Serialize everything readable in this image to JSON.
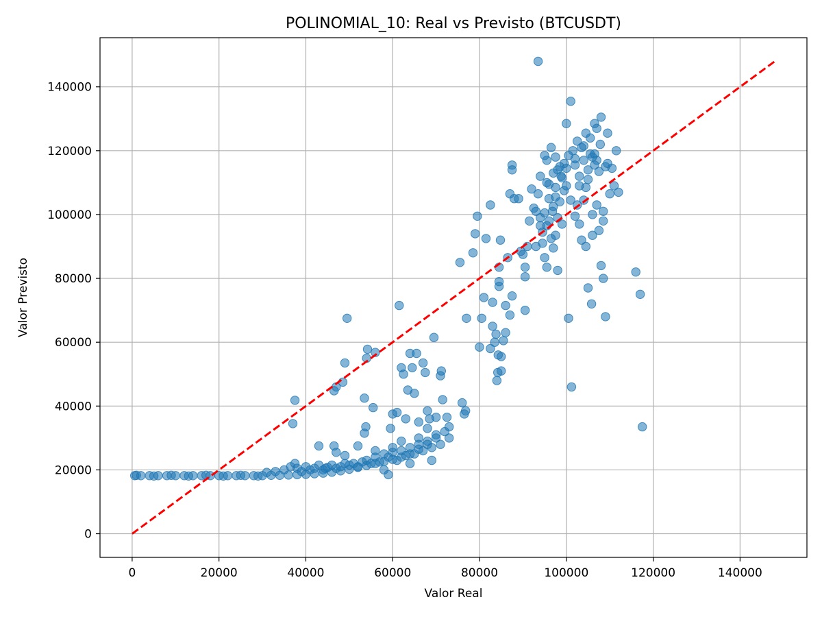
{
  "chart_data": {
    "type": "scatter",
    "title": "POLINOMIAL_10: Real vs Previsto (BTCUSDT)",
    "xlabel": "Valor Real",
    "ylabel": "Valor Previsto",
    "xlim": [
      -7400,
      155400
    ],
    "ylim": [
      -7400,
      155400
    ],
    "xticks": [
      0,
      20000,
      40000,
      60000,
      80000,
      100000,
      120000,
      140000
    ],
    "yticks": [
      0,
      20000,
      40000,
      60000,
      80000,
      100000,
      120000,
      140000
    ],
    "xtick_labels": [
      "0",
      "20000",
      "40000",
      "60000",
      "80000",
      "100000",
      "120000",
      "140000"
    ],
    "ytick_labels": [
      "0",
      "20000",
      "40000",
      "60000",
      "80000",
      "100000",
      "120000",
      "140000"
    ],
    "grid": true,
    "point_color": "#1f77b4",
    "point_alpha": 0.55,
    "reference_line": {
      "x": [
        0,
        148400
      ],
      "y": [
        0,
        148400
      ],
      "color": "#ff0000",
      "style": "dashed"
    },
    "points": [
      [
        600,
        18200
      ],
      [
        2000,
        18200
      ],
      [
        4000,
        18200
      ],
      [
        6000,
        18200
      ],
      [
        8000,
        18200
      ],
      [
        10000,
        18200
      ],
      [
        12000,
        18200
      ],
      [
        14000,
        18200
      ],
      [
        16000,
        18200
      ],
      [
        18000,
        18200
      ],
      [
        20000,
        18200
      ],
      [
        22000,
        18200
      ],
      [
        24000,
        18200
      ],
      [
        26000,
        18200
      ],
      [
        28000,
        18200
      ],
      [
        30000,
        18200
      ],
      [
        32000,
        18300
      ],
      [
        34000,
        18300
      ],
      [
        36000,
        18400
      ],
      [
        38000,
        18500
      ],
      [
        40000,
        18600
      ],
      [
        42000,
        18800
      ],
      [
        44000,
        19000
      ],
      [
        46000,
        19300
      ],
      [
        48000,
        19700
      ],
      [
        50000,
        20200
      ],
      [
        52000,
        20800
      ],
      [
        54000,
        21400
      ],
      [
        56000,
        22000
      ],
      [
        58000,
        22600
      ],
      [
        60000,
        23300
      ],
      [
        62000,
        24000
      ],
      [
        64000,
        25000
      ],
      [
        66000,
        26500
      ],
      [
        68000,
        28000
      ],
      [
        70000,
        30000
      ],
      [
        1000,
        18300
      ],
      [
        5000,
        18100
      ],
      [
        9000,
        18300
      ],
      [
        13000,
        18100
      ],
      [
        17000,
        18300
      ],
      [
        21000,
        18100
      ],
      [
        25000,
        18300
      ],
      [
        29000,
        18100
      ],
      [
        31000,
        19200
      ],
      [
        33000,
        19500
      ],
      [
        35000,
        20000
      ],
      [
        36500,
        21000
      ],
      [
        37500,
        22000
      ],
      [
        38000,
        20500
      ],
      [
        39000,
        19500
      ],
      [
        40000,
        21000
      ],
      [
        41000,
        20000
      ],
      [
        42000,
        20500
      ],
      [
        43000,
        21500
      ],
      [
        44000,
        20000
      ],
      [
        45000,
        20800
      ],
      [
        46000,
        21500
      ],
      [
        47000,
        20500
      ],
      [
        48000,
        21000
      ],
      [
        49000,
        22000
      ],
      [
        50000,
        21500
      ],
      [
        51000,
        22000
      ],
      [
        52000,
        21000
      ],
      [
        53000,
        22500
      ],
      [
        54000,
        23000
      ],
      [
        55000,
        22000
      ],
      [
        56000,
        24000
      ],
      [
        57000,
        22500
      ],
      [
        58000,
        25000
      ],
      [
        59000,
        24000
      ],
      [
        60000,
        25500
      ],
      [
        61000,
        23000
      ],
      [
        62000,
        26000
      ],
      [
        63000,
        24500
      ],
      [
        64000,
        27000
      ],
      [
        65000,
        25000
      ],
      [
        66000,
        28000
      ],
      [
        67000,
        26000
      ],
      [
        68000,
        29000
      ],
      [
        69000,
        27000
      ],
      [
        70000,
        31000
      ],
      [
        71000,
        28000
      ],
      [
        72000,
        32000
      ],
      [
        73000,
        30000
      ],
      [
        68000,
        33000
      ],
      [
        66000,
        30000
      ],
      [
        64000,
        22000
      ],
      [
        62000,
        29000
      ],
      [
        60000,
        27000
      ],
      [
        58000,
        20000
      ],
      [
        56000,
        26000
      ],
      [
        37000,
        34500
      ],
      [
        37500,
        41800
      ],
      [
        43000,
        27500
      ],
      [
        44500,
        20500
      ],
      [
        46500,
        27500
      ],
      [
        47000,
        25500
      ],
      [
        49000,
        24500
      ],
      [
        52000,
        27500
      ],
      [
        53500,
        31500
      ],
      [
        53800,
        33500
      ],
      [
        54000,
        55000
      ],
      [
        54200,
        57800
      ],
      [
        55500,
        39500
      ],
      [
        56000,
        56800
      ],
      [
        59000,
        18500
      ],
      [
        59500,
        33000
      ],
      [
        60000,
        37500
      ],
      [
        61000,
        38000
      ],
      [
        61500,
        71500
      ],
      [
        62000,
        52000
      ],
      [
        62500,
        50000
      ],
      [
        63000,
        36000
      ],
      [
        63500,
        45000
      ],
      [
        64000,
        56500
      ],
      [
        64500,
        52000
      ],
      [
        65000,
        44000
      ],
      [
        65500,
        56500
      ],
      [
        66000,
        35000
      ],
      [
        67000,
        53500
      ],
      [
        67500,
        50500
      ],
      [
        68000,
        38500
      ],
      [
        68500,
        36000
      ],
      [
        69000,
        23000
      ],
      [
        69500,
        61500
      ],
      [
        70000,
        36500
      ],
      [
        71000,
        49500
      ],
      [
        71200,
        51000
      ],
      [
        71500,
        42000
      ],
      [
        72500,
        36500
      ],
      [
        73000,
        33500
      ],
      [
        46500,
        44800
      ],
      [
        47000,
        46000
      ],
      [
        48500,
        47500
      ],
      [
        49000,
        53500
      ],
      [
        49500,
        67500
      ],
      [
        53500,
        42500
      ],
      [
        75500,
        85000
      ],
      [
        76000,
        41000
      ],
      [
        76500,
        37500
      ],
      [
        76800,
        38500
      ],
      [
        77000,
        67500
      ],
      [
        78500,
        88000
      ],
      [
        79000,
        94000
      ],
      [
        79500,
        99500
      ],
      [
        80000,
        58500
      ],
      [
        80500,
        67500
      ],
      [
        81000,
        74000
      ],
      [
        81500,
        92500
      ],
      [
        82500,
        103000
      ],
      [
        82500,
        58000
      ],
      [
        83000,
        65000
      ],
      [
        83000,
        72500
      ],
      [
        83500,
        60000
      ],
      [
        83800,
        62500
      ],
      [
        84000,
        48000
      ],
      [
        84200,
        50500
      ],
      [
        84300,
        56000
      ],
      [
        84500,
        79000
      ],
      [
        84500,
        77500
      ],
      [
        84500,
        83500
      ],
      [
        84800,
        92000
      ],
      [
        85000,
        51000
      ],
      [
        85000,
        55500
      ],
      [
        85500,
        60500
      ],
      [
        86000,
        63000
      ],
      [
        86000,
        71500
      ],
      [
        86500,
        86500
      ],
      [
        87000,
        106500
      ],
      [
        87000,
        68500
      ],
      [
        87500,
        74500
      ],
      [
        87500,
        114000
      ],
      [
        87500,
        115500
      ],
      [
        88000,
        105000
      ],
      [
        89000,
        105000
      ],
      [
        89500,
        88500
      ],
      [
        90000,
        87500
      ],
      [
        90500,
        80500
      ],
      [
        90500,
        83500
      ],
      [
        90500,
        70000
      ],
      [
        91000,
        90000
      ],
      [
        91500,
        98000
      ],
      [
        92000,
        108000
      ],
      [
        92500,
        102000
      ],
      [
        93000,
        90000
      ],
      [
        93500,
        106500
      ],
      [
        93500,
        148000
      ],
      [
        94000,
        112000
      ],
      [
        94000,
        96500
      ],
      [
        94500,
        94500
      ],
      [
        94500,
        91000
      ],
      [
        95000,
        100500
      ],
      [
        95000,
        86500
      ],
      [
        95500,
        83500
      ],
      [
        95500,
        110000
      ],
      [
        95500,
        117000
      ],
      [
        96000,
        98000
      ],
      [
        96000,
        105000
      ],
      [
        96500,
        121000
      ],
      [
        96500,
        92500
      ],
      [
        97000,
        89500
      ],
      [
        97000,
        102500
      ],
      [
        97000,
        113000
      ],
      [
        97500,
        108500
      ],
      [
        97500,
        118000
      ],
      [
        98000,
        82500
      ],
      [
        98000,
        99000
      ],
      [
        98500,
        104000
      ],
      [
        98500,
        115000
      ],
      [
        99000,
        97000
      ],
      [
        99500,
        107500
      ],
      [
        99500,
        116000
      ],
      [
        100000,
        128500
      ],
      [
        100000,
        109000
      ],
      [
        100500,
        67500
      ],
      [
        101000,
        135500
      ],
      [
        101200,
        46000
      ],
      [
        101500,
        120000
      ],
      [
        102000,
        99500
      ],
      [
        102000,
        115500
      ],
      [
        102500,
        103000
      ],
      [
        103000,
        97000
      ],
      [
        103000,
        112000
      ],
      [
        103500,
        92000
      ],
      [
        103500,
        121000
      ],
      [
        104000,
        104500
      ],
      [
        104000,
        117000
      ],
      [
        104500,
        125500
      ],
      [
        104500,
        90000
      ],
      [
        105000,
        77000
      ],
      [
        105000,
        111000
      ],
      [
        105500,
        119000
      ],
      [
        105800,
        72000
      ],
      [
        106000,
        100000
      ],
      [
        106000,
        93500
      ],
      [
        106500,
        128500
      ],
      [
        106500,
        119000
      ],
      [
        107000,
        127000
      ],
      [
        107000,
        103000
      ],
      [
        107500,
        95000
      ],
      [
        107500,
        113500
      ],
      [
        108000,
        84000
      ],
      [
        108000,
        130500
      ],
      [
        108500,
        80000
      ],
      [
        108500,
        98000
      ],
      [
        109000,
        68000
      ],
      [
        109000,
        115000
      ],
      [
        109500,
        125500
      ],
      [
        110000,
        106500
      ],
      [
        110500,
        114500
      ],
      [
        111000,
        109000
      ],
      [
        111500,
        120000
      ],
      [
        112000,
        107000
      ],
      [
        116000,
        82000
      ],
      [
        117000,
        75000
      ],
      [
        117500,
        33500
      ],
      [
        95000,
        118500
      ],
      [
        96000,
        109500
      ],
      [
        97500,
        105500
      ],
      [
        98800,
        112000
      ],
      [
        100500,
        118500
      ],
      [
        102500,
        123000
      ],
      [
        104500,
        108500
      ],
      [
        106000,
        118000
      ],
      [
        107800,
        122000
      ],
      [
        109500,
        116000
      ],
      [
        93000,
        101000
      ],
      [
        94000,
        99000
      ],
      [
        95500,
        96500
      ],
      [
        96800,
        101000
      ],
      [
        97500,
        93500
      ],
      [
        99000,
        111500
      ],
      [
        101000,
        104500
      ],
      [
        103000,
        109000
      ],
      [
        105000,
        114000
      ],
      [
        106500,
        115500
      ],
      [
        108500,
        101000
      ],
      [
        98000,
        114000
      ],
      [
        100000,
        114500
      ],
      [
        102000,
        117500
      ],
      [
        104000,
        121500
      ],
      [
        105500,
        124000
      ],
      [
        107000,
        117000
      ]
    ]
  }
}
